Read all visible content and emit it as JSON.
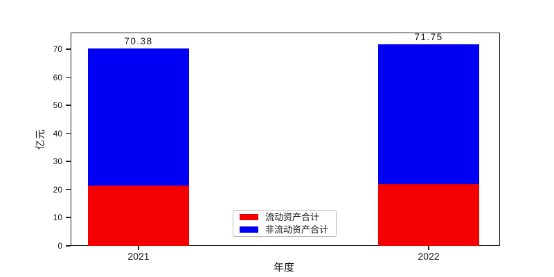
{
  "chart_data": {
    "type": "bar",
    "stacked": true,
    "categories": [
      "2021",
      "2022"
    ],
    "series": [
      {
        "name": "流动资产合计",
        "key": "current-assets",
        "color": "#f40000",
        "values": [
          21.4,
          21.9
        ]
      },
      {
        "name": "非流动资产合计",
        "key": "non-current-assets",
        "color": "#0000f4",
        "values": [
          48.98,
          49.85
        ]
      }
    ],
    "totals": [
      70.38,
      71.75
    ],
    "total_labels": [
      "70.38",
      "71.75"
    ],
    "title": "",
    "xlabel": "年度",
    "ylabel": "亿元",
    "ylim": [
      0,
      76
    ],
    "yticks": [
      0,
      10,
      20,
      30,
      40,
      50,
      60,
      70
    ],
    "grid": false,
    "legend_position": "lower-center"
  }
}
